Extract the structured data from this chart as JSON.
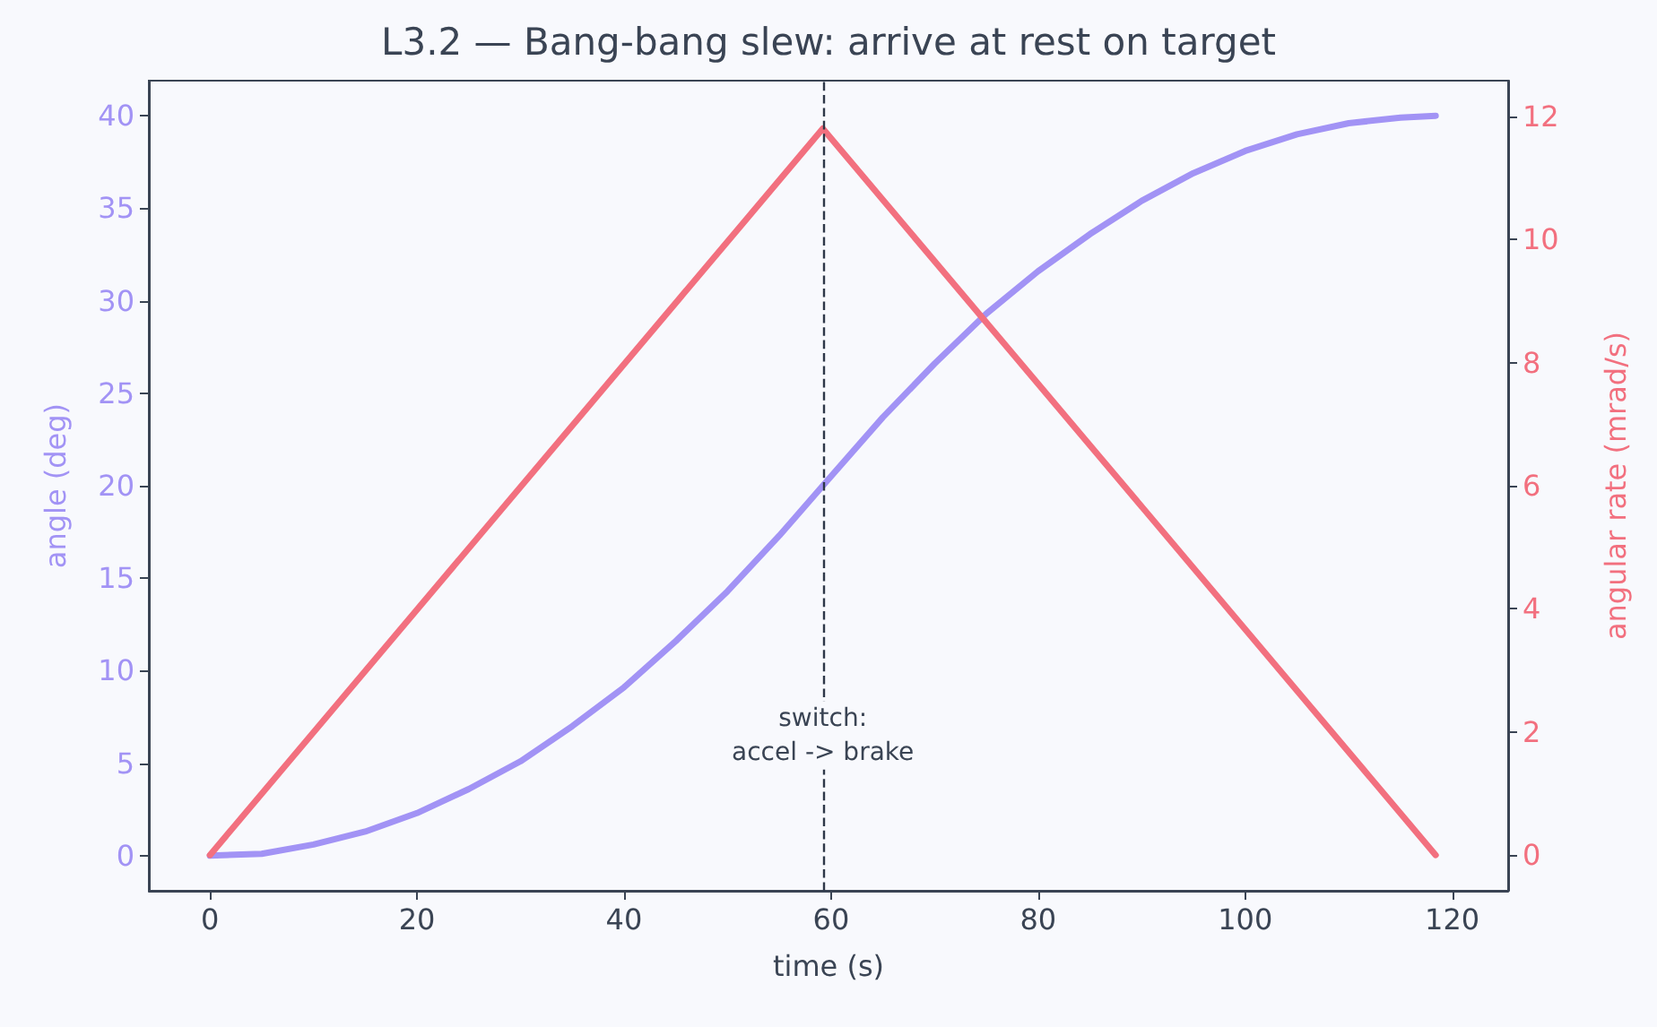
{
  "chart_data": {
    "type": "line",
    "title": "L3.2 — Bang-bang slew: arrive at rest on target",
    "xlabel": "time (s)",
    "ylabel": "angle (deg)",
    "y2label": "angular rate (mrad/s)",
    "series": [
      {
        "color": "#a293f5",
        "x": [
          0,
          5,
          10,
          15,
          20,
          25,
          30,
          35,
          40,
          45,
          50,
          55,
          59.2,
          65,
          70,
          75,
          80,
          85,
          90,
          95,
          100,
          105,
          110,
          115,
          118.4
        ],
        "values": [
          0,
          0.1,
          0.6,
          1.3,
          2.3,
          3.6,
          5.1,
          7.0,
          9.1,
          11.6,
          14.3,
          17.3,
          20,
          23.7,
          26.6,
          29.3,
          31.6,
          33.6,
          35.4,
          36.9,
          38.1,
          39.0,
          39.6,
          39.9,
          40
        ]
      },
      {
        "axis": "y2",
        "color": "#f2707f",
        "x": [
          0,
          59.2,
          118.4
        ],
        "values": [
          0,
          11.8,
          0
        ]
      }
    ],
    "ref_lines": [
      {
        "axis": "x",
        "value": 59.2,
        "label": null,
        "color": "#2d3748",
        "line_style": "dashed"
      }
    ],
    "annotations": [
      {
        "text": "switch:\naccel -> brake",
        "x": 59.2,
        "y": 6.5
      }
    ],
    "xlim": [
      -5.9,
      125.4
    ],
    "xticks": [
      0,
      20,
      40,
      60,
      80,
      100,
      120
    ],
    "ylim": [
      -1.9,
      41.9
    ],
    "yticks": [
      0,
      5,
      10,
      15,
      20,
      25,
      30,
      35,
      40
    ],
    "y2lim": [
      -0.58,
      12.58
    ],
    "y2ticks": [
      0,
      2,
      4,
      6,
      8,
      10,
      12
    ],
    "grid": false,
    "marker": "none",
    "line_style": "solid"
  }
}
